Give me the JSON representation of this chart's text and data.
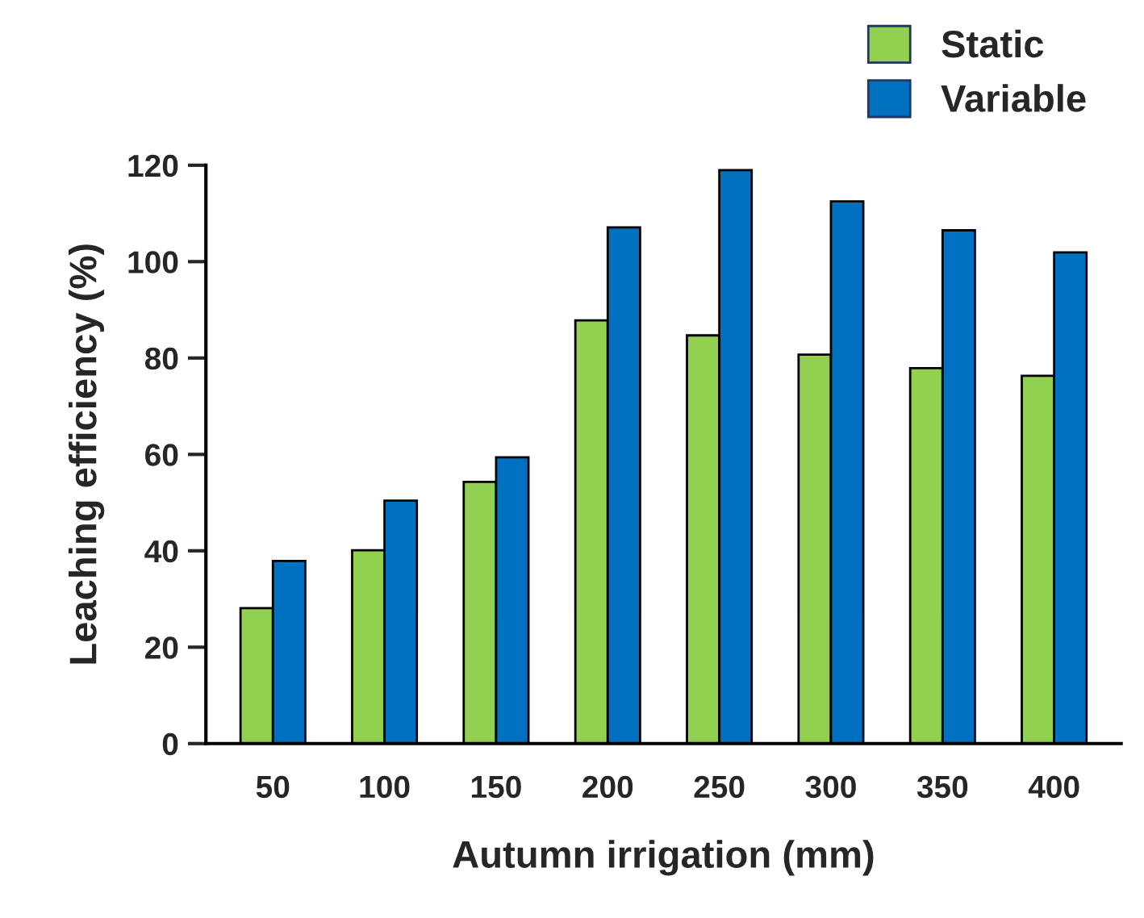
{
  "chart_data": {
    "type": "bar",
    "xlabel": "Autumn irrigation (mm)",
    "ylabel": "Leaching efficiency (%)",
    "categories": [
      "50",
      "100",
      "150",
      "200",
      "250",
      "300",
      "350",
      "400"
    ],
    "series": [
      {
        "name": "Static",
        "color": "#92d050",
        "values": [
          28.1,
          40.1,
          54.3,
          87.8,
          84.7,
          80.7,
          77.9,
          76.3
        ]
      },
      {
        "name": "Variable",
        "color": "#0070c0",
        "values": [
          37.9,
          50.4,
          59.4,
          107.1,
          119.0,
          112.5,
          106.5,
          101.9
        ]
      }
    ],
    "ylim": [
      0,
      120
    ],
    "yticks": [
      0,
      20,
      40,
      60,
      80,
      100,
      120
    ],
    "grid": false,
    "legend": "top right"
  }
}
